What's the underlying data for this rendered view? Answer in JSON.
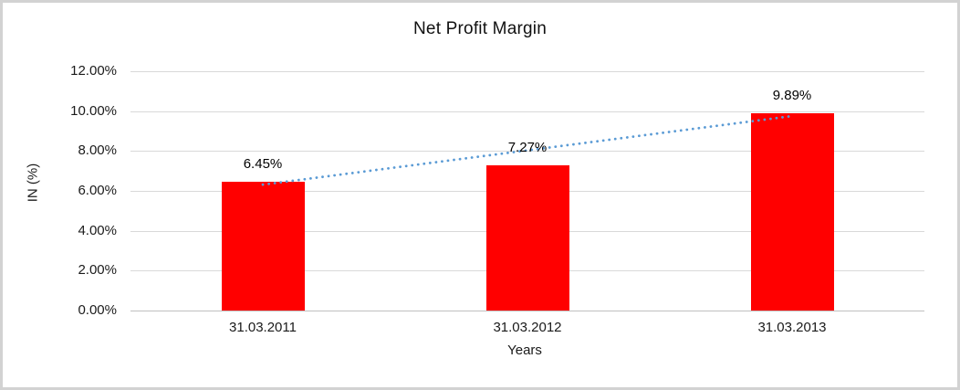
{
  "chart_data": {
    "type": "bar",
    "title": "Net Profit Margin",
    "xlabel": "Years",
    "ylabel": "IN (%)",
    "categories": [
      "31.03.2011",
      "31.03.2012",
      "31.03.2013"
    ],
    "values": [
      6.45,
      7.27,
      9.89
    ],
    "data_labels": [
      "6.45%",
      "7.27%",
      "9.89%"
    ],
    "ylim": [
      0,
      12
    ],
    "yticks": [
      0,
      2,
      4,
      6,
      8,
      10,
      12
    ],
    "ytick_labels": [
      "0.00%",
      "2.00%",
      "4.00%",
      "6.00%",
      "8.00%",
      "10.00%",
      "12.00%"
    ],
    "grid": true,
    "legend": "none",
    "bar_color": "#FF0000",
    "trendline": {
      "type": "linear",
      "style": "dotted",
      "color": "#5B9BD5"
    }
  }
}
